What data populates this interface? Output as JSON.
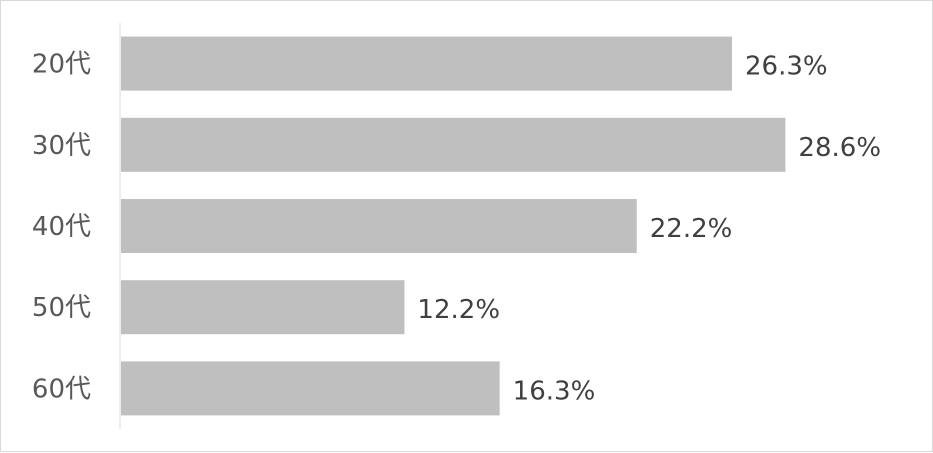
{
  "chart_data": {
    "type": "bar",
    "orientation": "horizontal",
    "categories": [
      "20代",
      "30代",
      "40代",
      "50代",
      "60代"
    ],
    "values": [
      26.3,
      28.6,
      22.2,
      12.2,
      16.3
    ],
    "value_labels": [
      "26.3%",
      "28.6%",
      "22.2%",
      "12.2%",
      "16.3%"
    ],
    "unit": "%",
    "title": "",
    "xlabel": "",
    "ylabel": "",
    "xlim": [
      0,
      30
    ],
    "grid": false,
    "legend": "none",
    "bar_color": "#bfbfbf",
    "axis_color": "#d9d9d9"
  }
}
